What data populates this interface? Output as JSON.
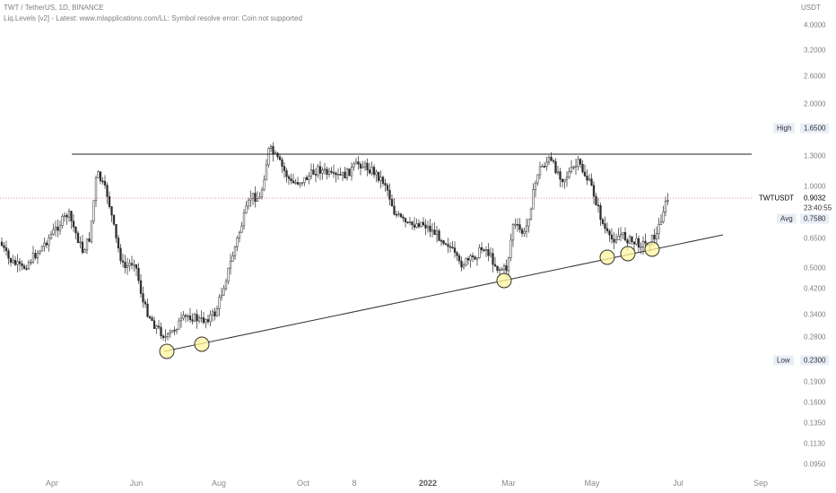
{
  "header": {
    "title": "TWT / TetherUS, 1D, BINANCE",
    "indicator": "Liq.Levels [v2] - Latest: www.mlapplications.com/LL: Symbol resolve error: Coin not supported"
  },
  "price_axis": {
    "unit": "USDT",
    "ticks": [
      "4.0000",
      "3.2000",
      "2.6000",
      "2.0000",
      "1.3000",
      "1.0000",
      "0.6500",
      "0.5000",
      "0.4200",
      "0.3400",
      "0.2800",
      "0.1900",
      "0.1600",
      "0.1350",
      "0.1130",
      "0.0950"
    ]
  },
  "time_axis": {
    "labels": [
      "Apr",
      "Jun",
      "Aug",
      "Oct",
      "8",
      "2022",
      "Mar",
      "May",
      "Jul",
      "Sep"
    ],
    "bold_label": "2022"
  },
  "levels": {
    "high_label": "High",
    "high_value": "1.6500",
    "symbol": "TWTUSDT",
    "last_price": "0.9032",
    "countdown": "23:40:55",
    "avg_label": "Avg",
    "avg_value": "0.7580",
    "low_label": "Low",
    "low_value": "0.2300"
  },
  "colors": {
    "up": "#2a2a2a",
    "down": "#2a2a2a",
    "last_price_line": "#e57373",
    "marker_fill": "#fff59d",
    "tag_bg": "#e8eef8"
  }
}
